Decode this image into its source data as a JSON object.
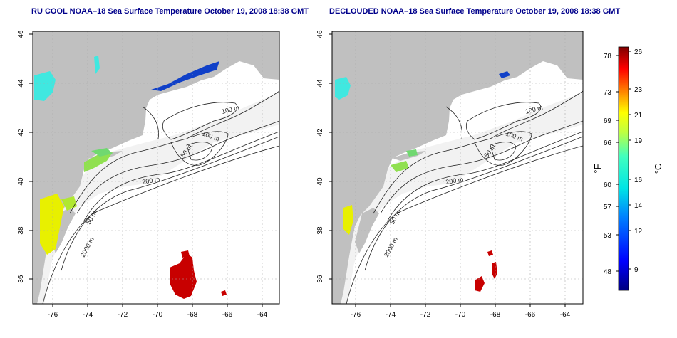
{
  "titles": {
    "left": "RU COOL NOAA–18 Sea Surface Temperature October 19, 2008 18:38 GMT",
    "right": "DECLOUDED NOAA–18 Sea Surface Temperature October 19, 2008 18:38 GMT"
  },
  "axes": {
    "x_ticks": [
      "-76",
      "-74",
      "-72",
      "-70",
      "-68",
      "-66",
      "-64"
    ],
    "y_ticks": [
      "36",
      "38",
      "40",
      "42",
      "44",
      "46"
    ]
  },
  "contours": {
    "label_100a": "100 m",
    "label_100b": "100 m",
    "label_50a": "50 m",
    "label_50b": "50 m",
    "label_200": "200 m",
    "label_2000": "2000 m"
  },
  "colorbar": {
    "f_ticks": [
      "78",
      "73",
      "69",
      "66",
      "60",
      "57",
      "53",
      "48"
    ],
    "c_ticks": [
      "26",
      "23",
      "21",
      "19",
      "16",
      "14",
      "12",
      "9"
    ],
    "f_label": "°F",
    "c_label": "°C"
  },
  "colors": {
    "land": "#c0c0c0",
    "shelf": "#f0f0f0",
    "title": "#00008b",
    "cool": "#00e5e5",
    "warm": "#c00000",
    "yellow": "#e5f000",
    "blue": "#0030c0"
  }
}
